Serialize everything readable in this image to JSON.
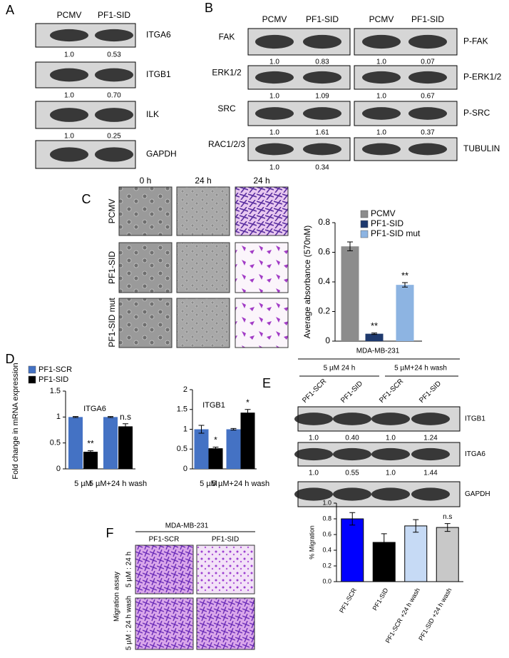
{
  "panels": {
    "A": {
      "label": "A",
      "lanes": [
        "PCMV",
        "PF1-SID"
      ],
      "blots": [
        {
          "name": "ITGA6",
          "quant": [
            "1.0",
            "0.53"
          ]
        },
        {
          "name": "ITGB1",
          "quant": [
            "1.0",
            "0.70"
          ]
        },
        {
          "name": "ILK",
          "quant": [
            "1.0",
            "0.25"
          ]
        },
        {
          "name": "GAPDH"
        }
      ]
    },
    "B": {
      "label": "B",
      "lanes": [
        "PCMV",
        "PF1-SID"
      ],
      "lanes_right": [
        "PCMV",
        "PF1-SID"
      ],
      "blots": [
        {
          "name": "FAK",
          "quant": [
            "1.0",
            "0.83"
          ],
          "right_name": "P-FAK",
          "right_quant": [
            "1.0",
            "0.07"
          ]
        },
        {
          "name": "ERK1/2",
          "quant": [
            "1.0",
            "1.09"
          ],
          "right_name": "P-ERK1/2",
          "right_quant": [
            "1.0",
            "0.67"
          ]
        },
        {
          "name": "SRC",
          "quant": [
            "1.0",
            "1.61"
          ],
          "right_name": "P-SRC",
          "right_quant": [
            "1.0",
            "0.37"
          ]
        },
        {
          "name": "RAC1/2/3",
          "quant": [
            "1.0",
            "0.34"
          ],
          "right_name": "TUBULIN"
        }
      ]
    },
    "C": {
      "label": "C",
      "columns": [
        "0 h",
        "24 h",
        "24 h"
      ],
      "rows": [
        "PCMV",
        "PF1-SID",
        "PF1-SID mut"
      ]
    },
    "D": {
      "label": "D"
    },
    "E": {
      "label": "E",
      "cell_line": "MDA-MB-231",
      "groups": [
        "5 µM 24 h",
        "5 µM+24 h wash"
      ],
      "lanes": [
        "PF1-SCR",
        "PF1-SID",
        "PF1-SCR",
        "PF1-SID"
      ],
      "blots": [
        {
          "name": "ITGB1",
          "quant": [
            "1.0",
            "0.40",
            "1.0",
            "1.24"
          ]
        },
        {
          "name": "ITGA6",
          "quant": [
            "1.0",
            "0.55",
            "1.0",
            "1.44"
          ]
        },
        {
          "name": "GAPDH"
        }
      ]
    },
    "F": {
      "label": "F",
      "cell_line": "MDA-MB-231",
      "columns": [
        "PF1-SCR",
        "PF1-SID"
      ],
      "rows": [
        "5 µM : 24 h",
        "5 µM : 24 h wash"
      ],
      "side_label": "Migration assay"
    }
  },
  "chart_data": [
    {
      "type": "bar",
      "ylabel": "Average absorbance (570nM)",
      "ylim": [
        0,
        0.8
      ],
      "yticks": [
        0,
        0.2,
        0.4,
        0.6,
        0.8
      ],
      "legend": "upper right",
      "grid": false,
      "series": [
        {
          "name": "PCMV",
          "color": "#8c8c8c",
          "values": [
            0.64
          ],
          "errors": [
            0.03
          ],
          "annotations": [
            null
          ]
        },
        {
          "name": "PF1-SID",
          "color": "#1f3a6e",
          "values": [
            0.05
          ],
          "errors": [
            0.005
          ],
          "annotations": [
            "**"
          ]
        },
        {
          "name": "PF1-SID mut",
          "color": "#8db4e2",
          "values": [
            0.38
          ],
          "errors": [
            0.015
          ],
          "annotations": [
            "**"
          ]
        }
      ]
    },
    {
      "type": "bar",
      "title": "ITGA6",
      "ylabel": "Fold change in mRNA expression",
      "ylim": [
        0,
        1.5
      ],
      "yticks": [
        0,
        0.5,
        1,
        1.5
      ],
      "legend": "upper left",
      "grid": false,
      "categories": [
        "5 µM",
        "5 µM+24 h wash"
      ],
      "series": [
        {
          "name": "PF1-SCR",
          "color": "#4472c4",
          "values": [
            1.0,
            1.0
          ],
          "errors": [
            0.01,
            0.01
          ],
          "annotations": [
            null,
            null
          ]
        },
        {
          "name": "PF1-SID",
          "color": "#000000",
          "values": [
            0.33,
            0.82
          ],
          "errors": [
            0.02,
            0.05
          ],
          "annotations": [
            "**",
            "n.s"
          ]
        }
      ]
    },
    {
      "type": "bar",
      "title": "ITGB1",
      "ylim": [
        0,
        2
      ],
      "yticks": [
        0,
        0.5,
        1,
        1.5,
        2
      ],
      "grid": false,
      "categories": [
        "5 µM",
        "5 µM+24 h wash"
      ],
      "series": [
        {
          "color": "#4472c4",
          "values": [
            1.0,
            1.0
          ],
          "errors": [
            0.1,
            0.02
          ],
          "annotations": [
            null,
            null
          ]
        },
        {
          "color": "#000000",
          "values": [
            0.52,
            1.42
          ],
          "errors": [
            0.03,
            0.08
          ],
          "annotations": [
            "*",
            "*"
          ]
        }
      ]
    },
    {
      "type": "bar",
      "ylabel": "% Migration",
      "ylim": [
        0,
        1.0
      ],
      "grid": false,
      "yticks": [
        {
          "value": 0,
          "label": "0.0"
        },
        0.2,
        0.4,
        0.6,
        0.8,
        {
          "value": 1.0,
          "label": "1.0"
        }
      ],
      "categories": [
        "PF1-SCR",
        "PF1-SID",
        "PF1-SCR +24 h wash",
        "PF1-SID +24 h wash"
      ],
      "values": [
        0.8,
        0.5,
        0.71,
        0.69
      ],
      "errors": [
        0.08,
        0.11,
        0.08,
        0.05
      ],
      "colors": [
        "#0000ff",
        "#000000",
        "#c6daf5",
        "#c8c8c8"
      ],
      "annotations": [
        null,
        null,
        null,
        "n.s"
      ]
    }
  ]
}
